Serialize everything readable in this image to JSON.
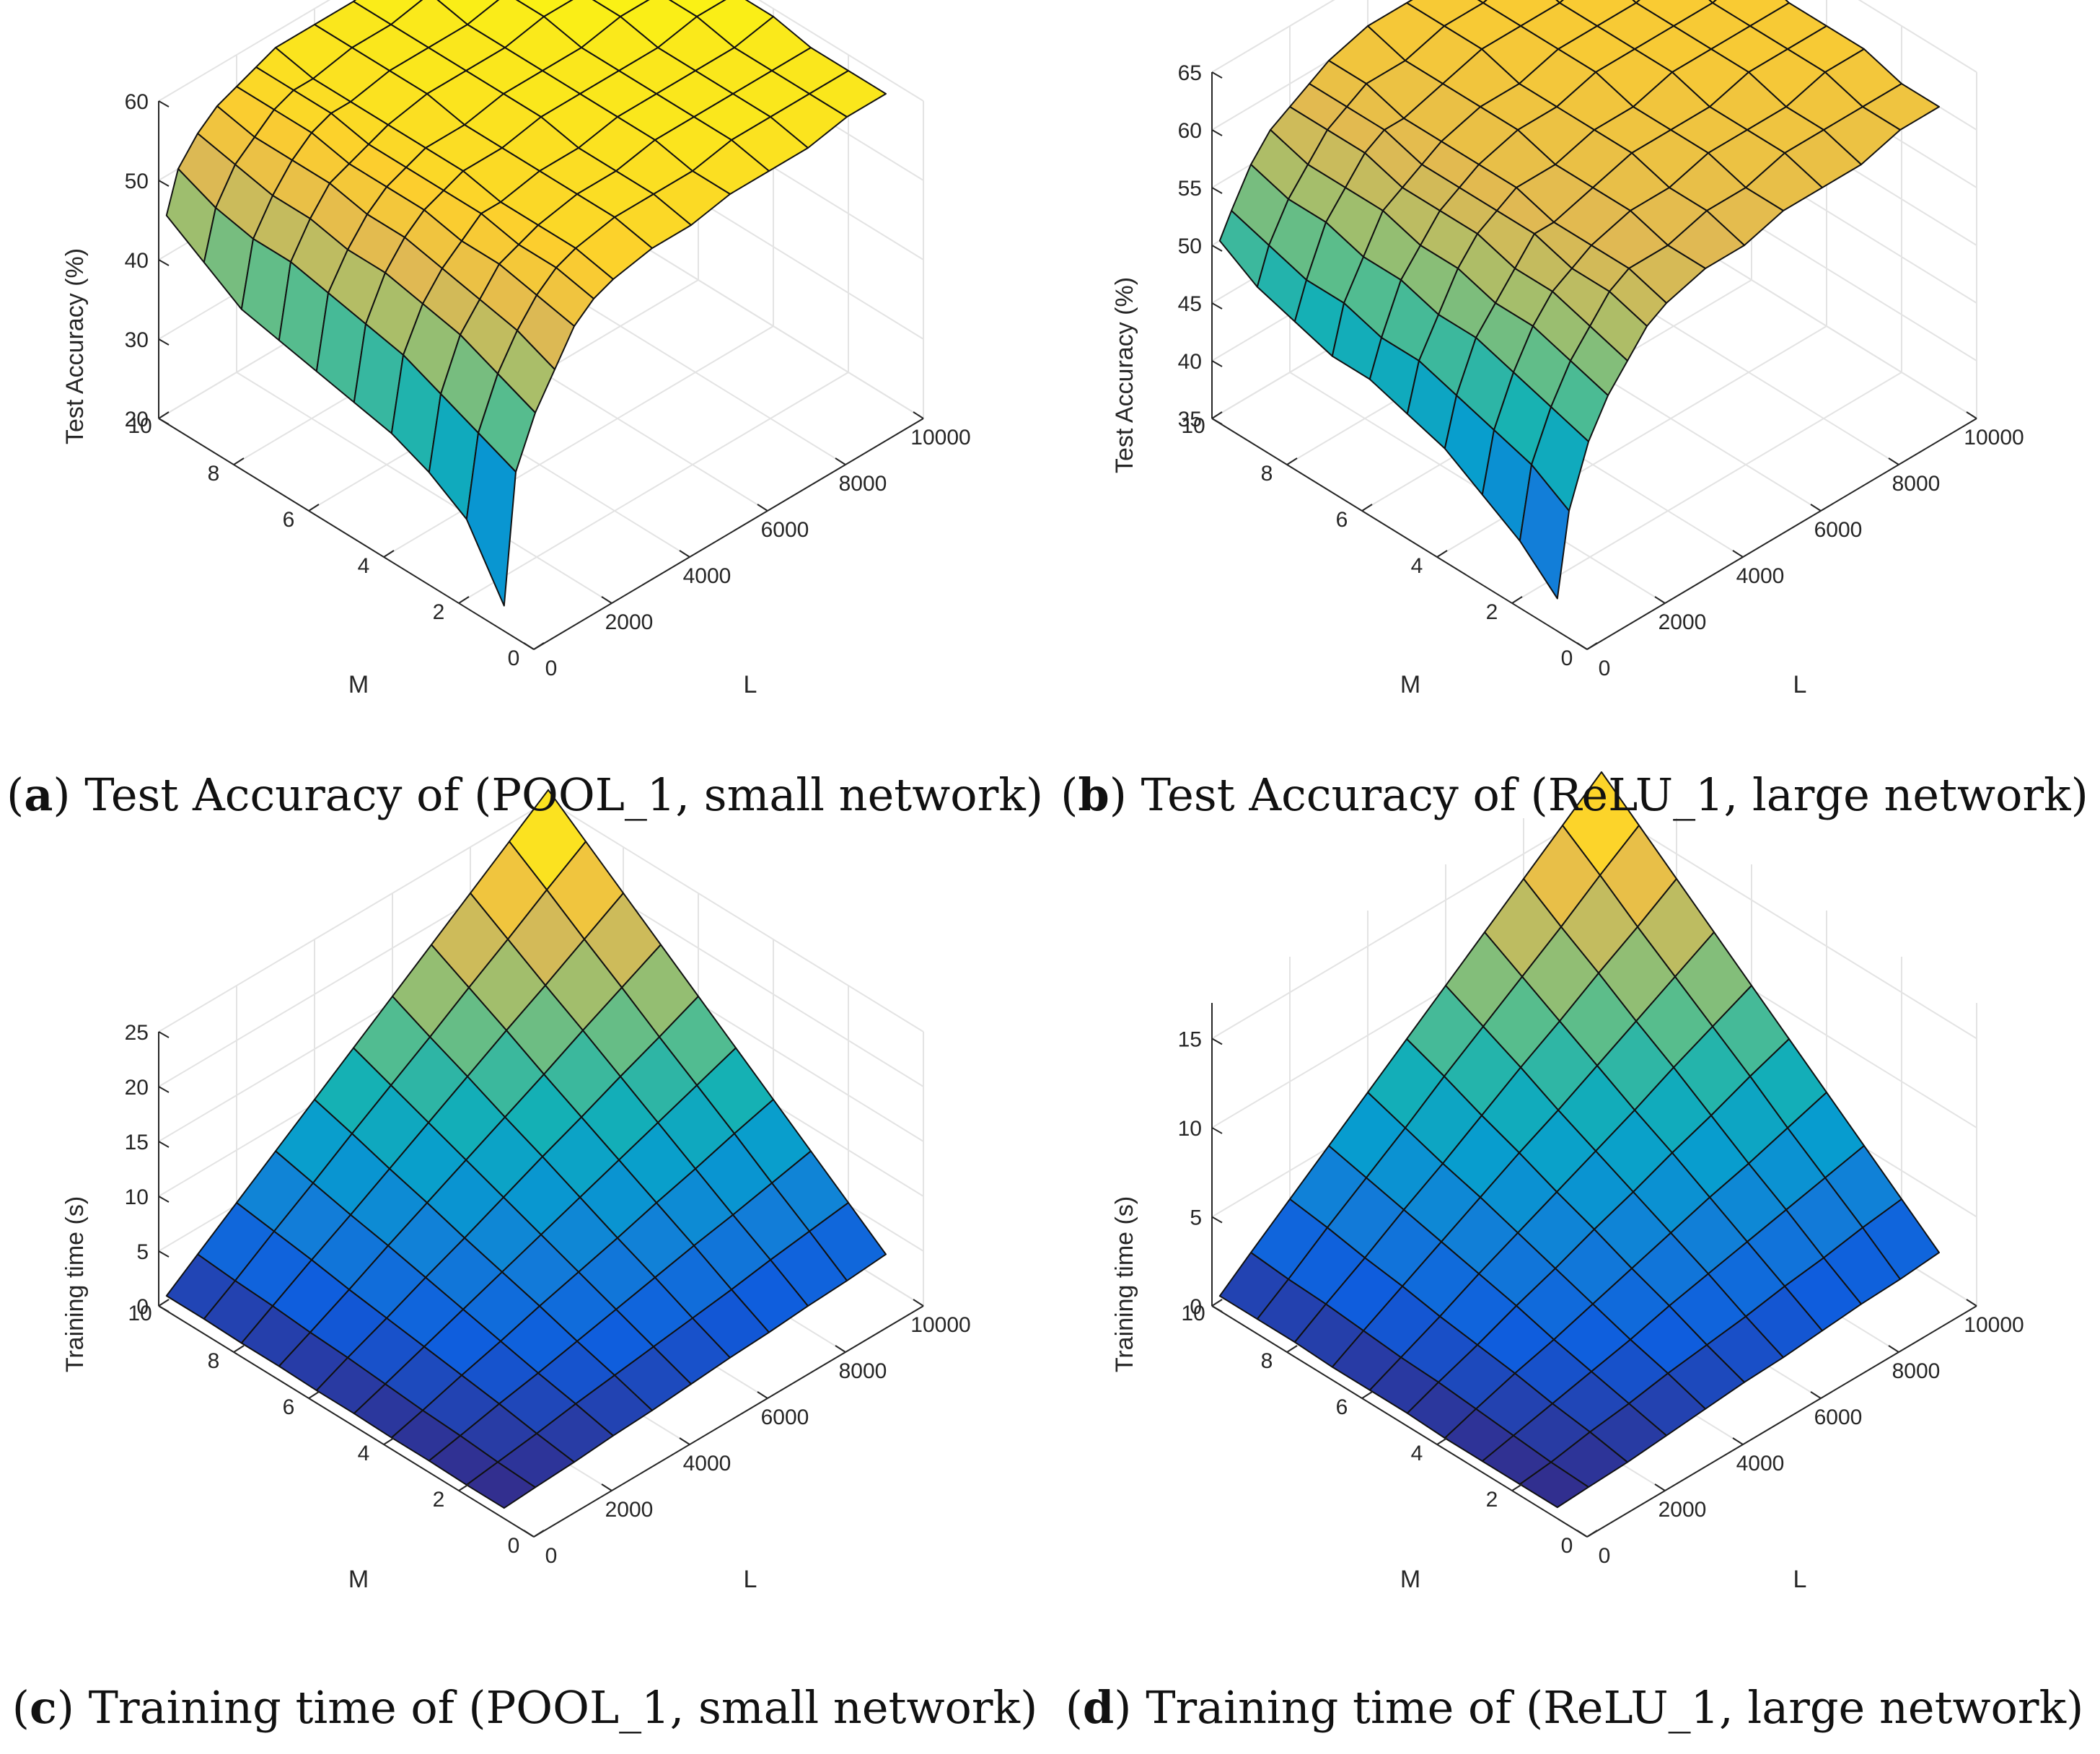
{
  "chart_data": [
    {
      "type": "surface3d",
      "letter": "a",
      "caption": "Test Accuracy of (POOL_1, small network)",
      "xlabel": "M",
      "ylabel": "L",
      "zlabel": "Test Accuracy (%)",
      "xlim": [
        0,
        10
      ],
      "ylim": [
        0,
        10000
      ],
      "zlim": [
        20,
        60
      ],
      "xticks": [
        "0",
        "2",
        "4",
        "6",
        "8",
        "10"
      ],
      "yticks": [
        "0",
        "2000",
        "4000",
        "6000",
        "8000",
        "10000"
      ],
      "zticks": [
        "20",
        "30",
        "40",
        "50",
        "60"
      ],
      "grid": true,
      "colormap": "parula",
      "surface_description": "Accuracy rises from ~20-40% at small L/small M to a noisy plateau of ~55-60% for L above ~3000",
      "L_samples": [
        200,
        500,
        1000,
        1500,
        2000,
        2500,
        3000,
        4000,
        5000,
        6000,
        7000,
        8000,
        9000,
        10000
      ],
      "M_samples": [
        1,
        2,
        3,
        4,
        5,
        6,
        7,
        8,
        9,
        10
      ],
      "values_approx_by_M": [
        [
          22,
          38,
          44,
          48,
          52,
          54,
          55,
          56,
          56,
          57,
          57,
          57,
          58,
          58
        ],
        [
          30,
          40,
          46,
          50,
          53,
          55,
          56,
          57,
          57,
          57,
          58,
          58,
          58,
          58
        ],
        [
          33,
          42,
          48,
          51,
          54,
          55,
          56,
          57,
          57,
          58,
          58,
          58,
          58,
          58
        ],
        [
          35,
          44,
          49,
          52,
          54,
          56,
          56,
          57,
          57,
          58,
          58,
          58,
          58,
          59
        ],
        [
          36,
          45,
          50,
          53,
          55,
          56,
          57,
          57,
          58,
          58,
          58,
          58,
          59,
          59
        ],
        [
          37,
          46,
          50,
          53,
          55,
          56,
          57,
          57,
          58,
          58,
          58,
          59,
          59,
          59
        ],
        [
          38,
          47,
          51,
          54,
          55,
          56,
          57,
          58,
          58,
          58,
          59,
          59,
          59,
          59
        ],
        [
          39,
          47,
          51,
          54,
          56,
          57,
          57,
          58,
          58,
          58,
          59,
          59,
          59,
          59
        ],
        [
          42,
          48,
          52,
          54,
          56,
          57,
          57,
          58,
          58,
          59,
          59,
          59,
          59,
          60
        ],
        [
          45,
          50,
          53,
          55,
          56,
          57,
          58,
          58,
          58,
          59,
          59,
          59,
          59,
          60
        ]
      ]
    },
    {
      "type": "surface3d",
      "letter": "b",
      "caption": "Test Accuracy of (ReLU_1, large network)",
      "xlabel": "M",
      "ylabel": "L",
      "zlabel": "Test Accuracy (%)",
      "xlim": [
        0,
        10
      ],
      "ylim": [
        0,
        10000
      ],
      "zlim": [
        35,
        65
      ],
      "xticks": [
        "0",
        "2",
        "4",
        "6",
        "8",
        "10"
      ],
      "yticks": [
        "0",
        "2000",
        "4000",
        "6000",
        "8000",
        "10000"
      ],
      "zticks": [
        "35",
        "40",
        "45",
        "50",
        "55",
        "60",
        "65"
      ],
      "grid": true,
      "colormap": "parula",
      "surface_description": "Accuracy rises from ~37-50% at small L to a very noisy plateau of ~57-63% for large L",
      "L_samples": [
        200,
        500,
        1000,
        1500,
        2000,
        2500,
        3000,
        4000,
        5000,
        6000,
        7000,
        8000,
        9000,
        10000
      ],
      "M_samples": [
        1,
        2,
        3,
        4,
        5,
        6,
        7,
        8,
        9,
        10
      ],
      "values_approx_by_M": [
        [
          37,
          44,
          49,
          52,
          54,
          56,
          57,
          58,
          58,
          59,
          59,
          59,
          60,
          60
        ],
        [
          40,
          46,
          50,
          53,
          55,
          57,
          58,
          58,
          59,
          59,
          60,
          60,
          60,
          60
        ],
        [
          42,
          47,
          51,
          54,
          56,
          57,
          58,
          59,
          59,
          60,
          60,
          60,
          61,
          61
        ],
        [
          44,
          48,
          52,
          54,
          56,
          58,
          58,
          59,
          60,
          60,
          60,
          61,
          61,
          61
        ],
        [
          45,
          49,
          52,
          55,
          57,
          58,
          59,
          59,
          60,
          60,
          61,
          61,
          61,
          61
        ],
        [
          46,
          49,
          53,
          55,
          57,
          58,
          59,
          60,
          60,
          61,
          61,
          61,
          61,
          62
        ],
        [
          46,
          50,
          53,
          56,
          57,
          58,
          59,
          60,
          60,
          61,
          61,
          61,
          62,
          62
        ],
        [
          47,
          50,
          54,
          56,
          58,
          59,
          59,
          60,
          61,
          61,
          61,
          62,
          62,
          62
        ],
        [
          48,
          51,
          54,
          56,
          58,
          59,
          60,
          60,
          61,
          61,
          62,
          62,
          62,
          62
        ],
        [
          50,
          52,
          55,
          57,
          58,
          59,
          60,
          61,
          61,
          61,
          62,
          62,
          62,
          63
        ]
      ]
    },
    {
      "type": "surface3d",
      "letter": "c",
      "caption": "Training time of (POOL_1, small network)",
      "xlabel": "M",
      "ylabel": "L",
      "zlabel": "Training time (s)",
      "xlim": [
        0,
        10
      ],
      "ylim": [
        0,
        10000
      ],
      "zlim": [
        0,
        25
      ],
      "xticks": [
        "0",
        "2",
        "4",
        "6",
        "8",
        "10"
      ],
      "yticks": [
        "0",
        "2000",
        "4000",
        "6000",
        "8000",
        "10000"
      ],
      "zticks": [
        "0",
        "5",
        "10",
        "15",
        "20",
        "25"
      ],
      "grid": true,
      "colormap": "parula",
      "surface_description": "Training time grows roughly as M x L, reaching ~26 s at M=10, L=10000",
      "L_samples": [
        200,
        1000,
        2000,
        3000,
        4000,
        5000,
        6000,
        7000,
        8000,
        9000,
        10000
      ],
      "M_samples": [
        1,
        2,
        3,
        4,
        5,
        6,
        7,
        8,
        9,
        10
      ],
      "values_approx_by_M": [
        [
          0.1,
          0.3,
          0.5,
          0.8,
          1.0,
          1.3,
          1.6,
          1.8,
          2.1,
          2.3,
          2.6
        ],
        [
          0.1,
          0.5,
          1.0,
          1.6,
          2.1,
          2.6,
          3.1,
          3.6,
          4.2,
          4.7,
          5.2
        ],
        [
          0.2,
          0.8,
          1.6,
          2.3,
          3.1,
          3.9,
          4.7,
          5.5,
          6.2,
          7.0,
          7.8
        ],
        [
          0.2,
          1.0,
          2.1,
          3.1,
          4.2,
          5.2,
          6.2,
          7.3,
          8.3,
          9.4,
          10.4
        ],
        [
          0.3,
          1.3,
          2.6,
          3.9,
          5.2,
          6.5,
          7.8,
          9.1,
          10.4,
          11.7,
          13.0
        ],
        [
          0.3,
          1.6,
          3.1,
          4.7,
          6.2,
          7.8,
          9.4,
          10.9,
          12.5,
          14.0,
          15.6
        ],
        [
          0.4,
          1.8,
          3.6,
          5.5,
          7.3,
          9.1,
          10.9,
          12.7,
          14.6,
          16.4,
          18.2
        ],
        [
          0.4,
          2.1,
          4.2,
          6.2,
          8.3,
          10.4,
          12.5,
          14.6,
          16.6,
          18.7,
          20.8
        ],
        [
          0.5,
          2.3,
          4.7,
          7.0,
          9.4,
          11.7,
          14.0,
          16.4,
          18.7,
          21.1,
          23.4
        ],
        [
          0.5,
          2.6,
          5.2,
          7.8,
          10.4,
          13.0,
          15.6,
          18.2,
          20.8,
          23.4,
          26.0
        ]
      ]
    },
    {
      "type": "surface3d",
      "letter": "d",
      "caption": "Training time of (ReLU_1, large network)",
      "xlabel": "M",
      "ylabel": "L",
      "zlabel": "Training time (s)",
      "xlim": [
        0,
        10
      ],
      "ylim": [
        0,
        10000
      ],
      "zlim": [
        0,
        17
      ],
      "xticks": [
        "0",
        "2",
        "4",
        "6",
        "8",
        "10"
      ],
      "yticks": [
        "0",
        "2000",
        "4000",
        "6000",
        "8000",
        "10000"
      ],
      "zticks": [
        "0",
        "5",
        "10",
        "15"
      ],
      "grid": true,
      "colormap": "parula",
      "surface_description": "Training time grows roughly as M x L with noise, reaching ~17 s at M=10, L=10000",
      "L_samples": [
        200,
        1000,
        2000,
        3000,
        4000,
        5000,
        6000,
        7000,
        8000,
        9000,
        10000
      ],
      "M_samples": [
        1,
        2,
        3,
        4,
        5,
        6,
        7,
        8,
        9,
        10
      ],
      "values_approx_by_M": [
        [
          0.1,
          0.2,
          0.3,
          0.5,
          0.7,
          0.9,
          1.0,
          1.2,
          1.4,
          1.5,
          1.7
        ],
        [
          0.1,
          0.3,
          0.7,
          1.0,
          1.4,
          1.7,
          2.0,
          2.4,
          2.7,
          3.1,
          3.4
        ],
        [
          0.1,
          0.5,
          1.0,
          1.5,
          2.0,
          2.6,
          3.1,
          3.6,
          4.1,
          4.6,
          5.1
        ],
        [
          0.1,
          0.7,
          1.4,
          2.0,
          2.7,
          3.4,
          4.1,
          4.8,
          5.4,
          6.1,
          6.8
        ],
        [
          0.2,
          0.9,
          1.7,
          2.6,
          3.4,
          4.3,
          5.1,
          6.0,
          6.8,
          7.7,
          8.5
        ],
        [
          0.2,
          1.0,
          2.0,
          3.1,
          4.1,
          5.1,
          6.1,
          7.1,
          8.2,
          9.2,
          10.2
        ],
        [
          0.2,
          1.2,
          2.4,
          3.6,
          4.8,
          6.0,
          7.1,
          8.3,
          9.5,
          10.7,
          11.9
        ],
        [
          0.3,
          1.4,
          2.7,
          4.1,
          5.4,
          6.8,
          8.2,
          9.5,
          10.9,
          12.2,
          13.6
        ],
        [
          0.3,
          1.5,
          3.1,
          4.6,
          6.1,
          7.7,
          9.2,
          10.7,
          12.2,
          13.8,
          15.3
        ],
        [
          0.3,
          1.7,
          3.4,
          5.1,
          6.8,
          8.5,
          10.2,
          11.9,
          13.6,
          15.3,
          17.0
        ]
      ]
    }
  ]
}
